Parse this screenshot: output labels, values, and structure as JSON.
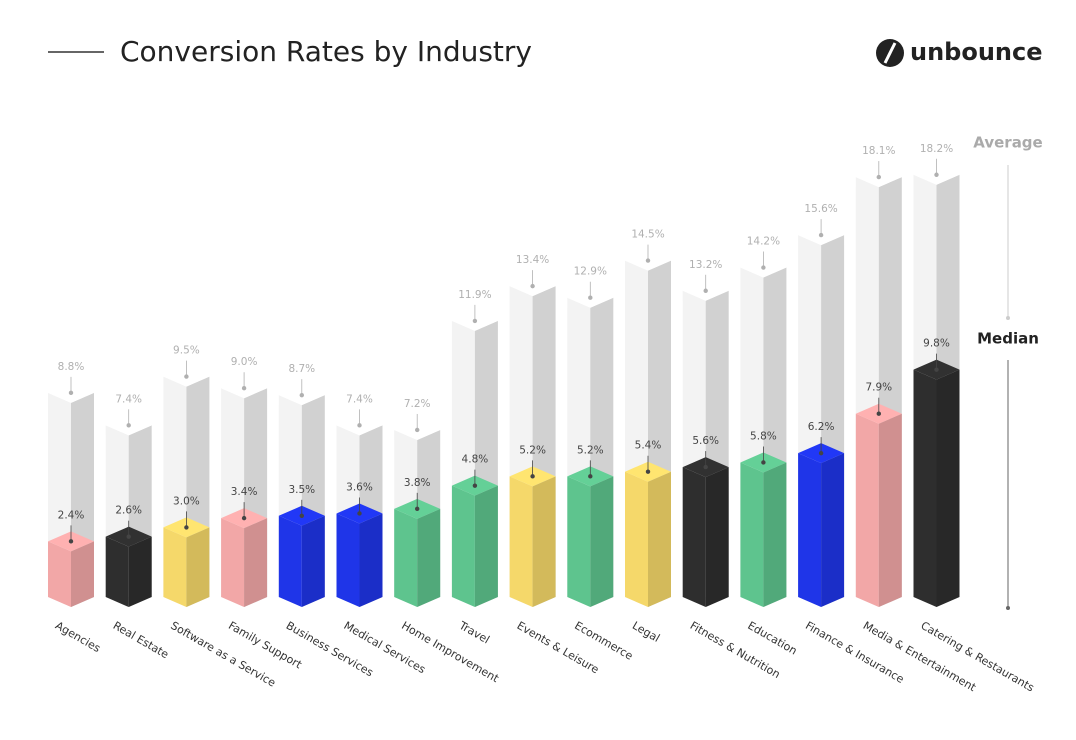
{
  "chart_data": {
    "type": "bar3d",
    "title": "Conversion Rates by Industry",
    "brand": "unbounce",
    "categories": [
      "Agencies",
      "Real Estate",
      "Software as a Service",
      "Family Support",
      "Business Services",
      "Medical Services",
      "Home Improvement",
      "Travel",
      "Events & Leisure",
      "Ecommerce",
      "Legal",
      "Fitness & Nutrition",
      "Education",
      "Finance & Insurance",
      "Media & Entertainment",
      "Catering & Restaurants"
    ],
    "series": [
      {
        "name": "Average",
        "color": "#f3f3f3",
        "values": [
          8.8,
          7.4,
          9.5,
          9.0,
          8.7,
          7.4,
          7.2,
          11.9,
          13.4,
          12.9,
          14.5,
          13.2,
          14.2,
          15.6,
          18.1,
          18.2
        ],
        "value_labels": [
          "8.8%",
          "7.4%",
          "9.5%",
          "9.0%",
          "8.7%",
          "7.4%",
          "7.2%",
          "11.9%",
          "13.4%",
          "12.9%",
          "14.5%",
          "13.2%",
          "14.2%",
          "15.6%",
          "18.1%",
          "18.2%"
        ]
      },
      {
        "name": "Median",
        "colors": [
          "#f2a7a7",
          "#2e2e2e",
          "#f5d86a",
          "#f2a7a7",
          "#1f35e8",
          "#1f35e8",
          "#5ec48e",
          "#5ec48e",
          "#f5d86a",
          "#5ec48e",
          "#f5d86a",
          "#2e2e2e",
          "#5ec48e",
          "#1f35e8",
          "#f2a7a7",
          "#2e2e2e"
        ],
        "values": [
          2.4,
          2.6,
          3.0,
          3.4,
          3.5,
          3.6,
          3.8,
          4.8,
          5.2,
          5.2,
          5.4,
          5.6,
          5.8,
          6.2,
          7.9,
          9.8
        ],
        "value_labels": [
          "2.4%",
          "2.6%",
          "3.0%",
          "3.4%",
          "3.5%",
          "3.6%",
          "3.8%",
          "4.8%",
          "5.2%",
          "5.2%",
          "5.4%",
          "5.6%",
          "5.8%",
          "6.2%",
          "7.9%",
          "9.8%"
        ]
      }
    ]
  }
}
